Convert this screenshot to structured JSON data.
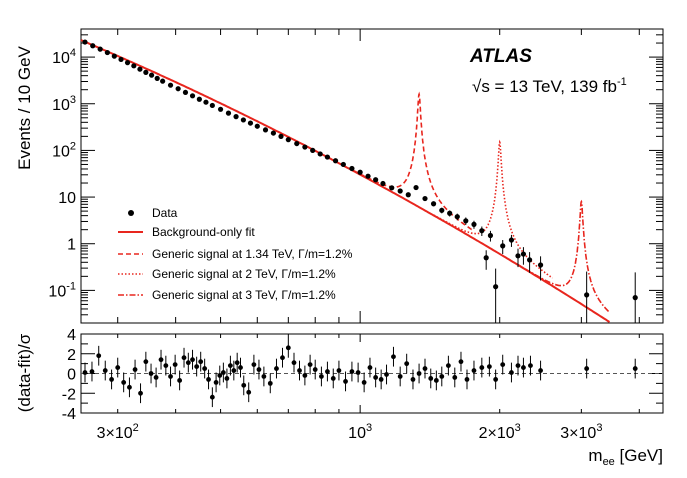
{
  "chart_data": [
    {
      "panel": "main",
      "type": "scatter",
      "experiment": "ATLAS",
      "energy_label": "√s = 13 TeV, 139 fb",
      "lumi_superscript": "-1",
      "ylabel": "Events / 10 GeV",
      "xlabel_main": "m",
      "xlabel_sub": "ee",
      "xlabel_unit": " [GeV]",
      "x_scale": "log",
      "y_scale": "log",
      "xlim": [
        250,
        4500
      ],
      "ylim": [
        0.02,
        40000
      ],
      "y_ticks": [
        {
          "v": 0.1,
          "base": "10",
          "exp": "-1"
        },
        {
          "v": 1,
          "base": "1",
          "exp": ""
        },
        {
          "v": 10,
          "base": "10",
          "exp": ""
        },
        {
          "v": 100,
          "base": "10",
          "exp": "2"
        },
        {
          "v": 1000,
          "base": "10",
          "exp": "3"
        },
        {
          "v": 10000,
          "base": "10",
          "exp": "4"
        }
      ],
      "x_ticks": [
        {
          "v": 300,
          "base": "3×10",
          "exp": "2"
        },
        {
          "v": 1000,
          "base": "10",
          "exp": "3"
        },
        {
          "v": 2000,
          "base": "2×10",
          "exp": "3"
        },
        {
          "v": 3000,
          "base": "3×10",
          "exp": "3"
        }
      ],
      "legend_position": "bottom-left",
      "legend": [
        {
          "label": "Data",
          "style": "marker"
        },
        {
          "label": "Background-only fit",
          "style": "solid"
        },
        {
          "label": "Generic signal at 1.34 TeV, Γ/m=1.2%",
          "style": "dashed"
        },
        {
          "label": "Generic signal at 2 TeV, Γ/m=1.2%",
          "style": "dotted"
        },
        {
          "label": "Generic signal at 3 TeV, Γ/m=1.2%",
          "style": "dashdot"
        }
      ],
      "series": [
        {
          "name": "Data",
          "style": "marker",
          "color": "#000000",
          "points": [
            [
              255,
              21000
            ],
            [
              265,
              17500
            ],
            [
              275,
              14800
            ],
            [
              285,
              12500
            ],
            [
              295,
              10500
            ],
            [
              305,
              8900
            ],
            [
              315,
              7600
            ],
            [
              325,
              6500
            ],
            [
              335,
              5500
            ],
            [
              345,
              4700
            ],
            [
              355,
              4100
            ],
            [
              365,
              3500
            ],
            [
              375,
              3050
            ],
            [
              390,
              2500
            ],
            [
              405,
              2100
            ],
            [
              420,
              1750
            ],
            [
              435,
              1480
            ],
            [
              450,
              1250
            ],
            [
              465,
              1080
            ],
            [
              480,
              920
            ],
            [
              500,
              760
            ],
            [
              520,
              630
            ],
            [
              540,
              530
            ],
            [
              560,
              450
            ],
            [
              580,
              385
            ],
            [
              600,
              330
            ],
            [
              625,
              275
            ],
            [
              650,
              235
            ],
            [
              675,
              200
            ],
            [
              700,
              170
            ],
            [
              730,
              140
            ],
            [
              760,
              118
            ],
            [
              790,
              100
            ],
            [
              820,
              84
            ],
            [
              850,
              72
            ],
            [
              885,
              60
            ],
            [
              920,
              50
            ],
            [
              960,
              41
            ],
            [
              1000,
              34
            ],
            [
              1040,
              28
            ],
            [
              1080,
              23.5
            ],
            [
              1120,
              19.5
            ],
            [
              1170,
              15.8
            ],
            [
              1220,
              13.5
            ],
            [
              1270,
              11.2
            ],
            [
              1320,
              16
            ],
            [
              1380,
              9.3
            ],
            [
              1440,
              7.2
            ],
            [
              1500,
              5.2
            ],
            [
              1560,
              4.5
            ],
            [
              1620,
              3.8
            ],
            [
              1690,
              3.1
            ],
            [
              1760,
              2.6
            ],
            [
              1830,
              1.9
            ],
            [
              1870,
              0.5
            ],
            [
              1910,
              1.5
            ],
            [
              1960,
              0.12
            ],
            [
              2030,
              0.9
            ],
            [
              2120,
              1.2
            ],
            [
              2190,
              0.55
            ],
            [
              2250,
              0.6
            ],
            [
              2320,
              0.45
            ],
            [
              2450,
              0.35
            ],
            [
              3080,
              0.08
            ],
            [
              3920,
              0.07
            ]
          ]
        },
        {
          "name": "Background-only fit",
          "style": "solid",
          "color": "#e8261e",
          "x_range": [
            250,
            3450
          ],
          "reference_points": [
            [
              250,
              23000
            ],
            [
              1000,
              31
            ],
            [
              2000,
              0.58
            ],
            [
              3000,
              0.052
            ]
          ]
        },
        {
          "name": "Generic signal at 1.34 TeV, Γ/m=1.2%",
          "style": "dashed",
          "color": "#e8261e",
          "mass": 1340,
          "peak_events": 1600,
          "relative_width": 0.012
        },
        {
          "name": "Generic signal at 2 TeV, Γ/m=1.2%",
          "style": "dotted",
          "color": "#e8261e",
          "mass": 2000,
          "peak_events": 150,
          "relative_width": 0.012
        },
        {
          "name": "Generic signal at 3 TeV, Γ/m=1.2%",
          "style": "dashdot",
          "color": "#e8261e",
          "mass": 3000,
          "peak_events": 8,
          "relative_width": 0.012
        }
      ]
    },
    {
      "panel": "ratio",
      "type": "scatter",
      "ylabel": "(data-fit)/σ",
      "ylim": [
        -4,
        4
      ],
      "y_ticks": [
        -4,
        -2,
        0,
        2,
        4
      ],
      "reference_line": 0,
      "points": [
        [
          255,
          0.1
        ],
        [
          264,
          0.2
        ],
        [
          273,
          1.8
        ],
        [
          282,
          0.3
        ],
        [
          291,
          -0.6
        ],
        [
          300,
          0.6
        ],
        [
          309,
          -0.9
        ],
        [
          318,
          -1.4
        ],
        [
          327,
          0.4
        ],
        [
          336,
          -2.0
        ],
        [
          345,
          1.2
        ],
        [
          354,
          0.0
        ],
        [
          363,
          -0.4
        ],
        [
          372,
          1.4
        ],
        [
          381,
          0.8
        ],
        [
          390,
          -0.3
        ],
        [
          399,
          0.9
        ],
        [
          408,
          -0.7
        ],
        [
          417,
          1.6
        ],
        [
          426,
          1.1
        ],
        [
          435,
          1.4
        ],
        [
          444,
          0.7
        ],
        [
          453,
          1.2
        ],
        [
          462,
          0.5
        ],
        [
          471,
          -0.6
        ],
        [
          480,
          -2.4
        ],
        [
          489,
          -0.9
        ],
        [
          498,
          -0.2
        ],
        [
          507,
          0.1
        ],
        [
          516,
          -0.5
        ],
        [
          525,
          0.8
        ],
        [
          534,
          0.3
        ],
        [
          543,
          1.1
        ],
        [
          552,
          0.6
        ],
        [
          561,
          -1.2
        ],
        [
          575,
          -1.9
        ],
        [
          590,
          0.9
        ],
        [
          605,
          0.4
        ],
        [
          620,
          -0.3
        ],
        [
          640,
          -1.0
        ],
        [
          660,
          0.5
        ],
        [
          680,
          1.6
        ],
        [
          700,
          2.6
        ],
        [
          720,
          1.1
        ],
        [
          740,
          0.3
        ],
        [
          760,
          -0.2
        ],
        [
          780,
          0.9
        ],
        [
          800,
          0.4
        ],
        [
          825,
          -0.3
        ],
        [
          850,
          0.2
        ],
        [
          875,
          -0.5
        ],
        [
          900,
          0.3
        ],
        [
          930,
          -0.8
        ],
        [
          960,
          0.2
        ],
        [
          990,
          0.1
        ],
        [
          1020,
          -0.9
        ],
        [
          1050,
          0.6
        ],
        [
          1080,
          -0.4
        ],
        [
          1110,
          -0.6
        ],
        [
          1140,
          -0.1
        ],
        [
          1180,
          1.7
        ],
        [
          1220,
          -0.3
        ],
        [
          1260,
          1.0
        ],
        [
          1300,
          -0.6
        ],
        [
          1340,
          0.0
        ],
        [
          1380,
          0.5
        ],
        [
          1420,
          -0.5
        ],
        [
          1460,
          -0.7
        ],
        [
          1500,
          -0.3
        ],
        [
          1550,
          0.8
        ],
        [
          1600,
          -0.4
        ],
        [
          1650,
          1.2
        ],
        [
          1700,
          -0.6
        ],
        [
          1760,
          0.3
        ],
        [
          1830,
          0.6
        ],
        [
          1900,
          0.7
        ],
        [
          1960,
          -0.6
        ],
        [
          2030,
          0.9
        ],
        [
          2120,
          0.1
        ],
        [
          2190,
          0.8
        ],
        [
          2250,
          0.6
        ],
        [
          2330,
          0.8
        ],
        [
          2450,
          0.3
        ],
        [
          3080,
          0.5
        ],
        [
          3920,
          0.5
        ]
      ]
    }
  ]
}
